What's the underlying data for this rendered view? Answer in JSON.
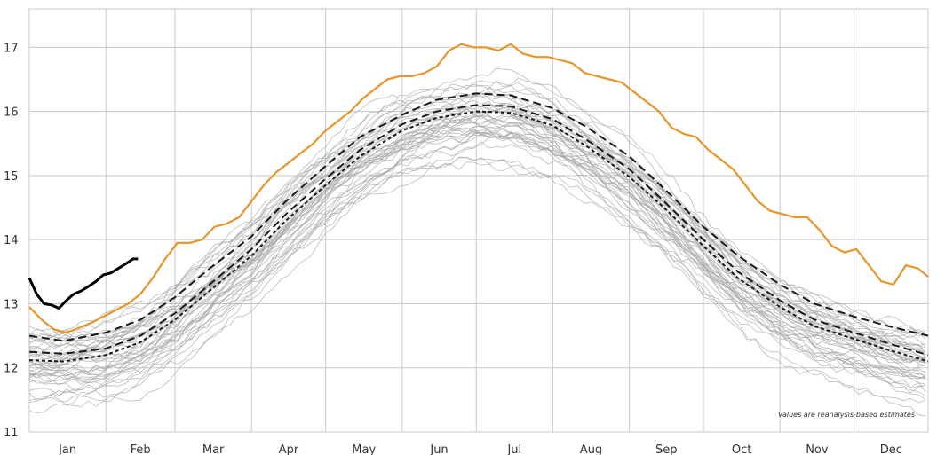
{
  "chart_data": {
    "type": "line",
    "title": "",
    "xlabel": "",
    "ylabel": "",
    "x_ticks": [
      "Jan",
      "Feb",
      "Mar",
      "Apr",
      "May",
      "Jun",
      "Jul",
      "Aug",
      "Sep",
      "Oct",
      "Nov",
      "Dec"
    ],
    "y_ticks": [
      11,
      12,
      13,
      14,
      15,
      16,
      17
    ],
    "ylim": [
      11,
      17.6
    ],
    "xlim_day_of_year": [
      1,
      365
    ],
    "grid": true,
    "legend": "none",
    "annotation": "Values are reanalysis-based estimates",
    "colors": {
      "ensemble": "#a6a6a6",
      "record": "#e8952b",
      "current": "#000000",
      "reference": "#1a1a1a",
      "grid": "#c8c8c8"
    },
    "ensemble_seed": 20240213,
    "ensemble_count": 44,
    "series": [
      {
        "role": "record",
        "style": "solid",
        "x": [
          1,
          6,
          11,
          16,
          21,
          26,
          31,
          36,
          41,
          46,
          51,
          56,
          61,
          66,
          71,
          76,
          81,
          86,
          91,
          96,
          101,
          106,
          111,
          116,
          121,
          126,
          131,
          136,
          141,
          146,
          151,
          156,
          161,
          166,
          171,
          176,
          181,
          186,
          191,
          196,
          201,
          206,
          211,
          216,
          221,
          226,
          231,
          236,
          241,
          246,
          251,
          256,
          261,
          266,
          271,
          276,
          281,
          286,
          291,
          296,
          301,
          306,
          311,
          316,
          321,
          326,
          331,
          336,
          341,
          346,
          351,
          356,
          361,
          365
        ],
        "y": [
          12.95,
          12.75,
          12.6,
          12.55,
          12.62,
          12.7,
          12.8,
          12.9,
          13.0,
          13.15,
          13.4,
          13.7,
          13.95,
          13.95,
          14.0,
          14.2,
          14.25,
          14.35,
          14.6,
          14.85,
          15.05,
          15.2,
          15.35,
          15.5,
          15.7,
          15.85,
          16.0,
          16.2,
          16.35,
          16.5,
          16.55,
          16.55,
          16.6,
          16.7,
          16.95,
          17.05,
          17.0,
          17.0,
          16.95,
          17.05,
          16.9,
          16.85,
          16.85,
          16.8,
          16.75,
          16.6,
          16.55,
          16.5,
          16.45,
          16.3,
          16.15,
          16.0,
          15.75,
          15.65,
          15.6,
          15.4,
          15.25,
          15.1,
          14.85,
          14.6,
          14.45,
          14.4,
          14.35,
          14.35,
          14.15,
          13.9,
          13.8,
          13.85,
          13.6,
          13.35,
          13.3,
          13.6,
          13.55,
          13.42
        ]
      },
      {
        "role": "current",
        "style": "solid",
        "x": [
          1,
          4,
          7,
          10,
          13,
          16,
          19,
          22,
          25,
          28,
          31,
          34,
          37,
          40,
          43,
          45
        ],
        "y": [
          13.4,
          13.15,
          13.0,
          12.98,
          12.93,
          13.05,
          13.15,
          13.2,
          13.27,
          13.35,
          13.45,
          13.48,
          13.55,
          13.62,
          13.7,
          13.7
        ]
      },
      {
        "role": "reference",
        "style": "dash",
        "x": [
          1,
          15,
          32,
          46,
          60,
          74,
          91,
          105,
          121,
          135,
          152,
          166,
          182,
          196,
          213,
          227,
          244,
          258,
          274,
          288,
          305,
          319,
          335,
          349,
          365
        ],
        "y": [
          12.5,
          12.42,
          12.55,
          12.75,
          13.1,
          13.55,
          14.05,
          14.6,
          15.15,
          15.6,
          15.95,
          16.18,
          16.28,
          16.25,
          16.05,
          15.75,
          15.3,
          14.8,
          14.2,
          13.75,
          13.3,
          13.0,
          12.8,
          12.65,
          12.5
        ]
      },
      {
        "role": "reference",
        "style": "dash",
        "x": [
          1,
          15,
          32,
          46,
          60,
          74,
          91,
          105,
          121,
          135,
          152,
          166,
          182,
          196,
          213,
          227,
          244,
          258,
          274,
          288,
          305,
          319,
          335,
          349,
          365
        ],
        "y": [
          12.25,
          12.22,
          12.3,
          12.5,
          12.85,
          13.3,
          13.85,
          14.4,
          14.95,
          15.4,
          15.8,
          16.0,
          16.1,
          16.08,
          15.88,
          15.55,
          15.1,
          14.6,
          14.0,
          13.5,
          13.05,
          12.75,
          12.55,
          12.38,
          12.2
        ]
      },
      {
        "role": "reference",
        "style": "dot",
        "x": [
          1,
          15,
          32,
          46,
          60,
          74,
          91,
          105,
          121,
          135,
          152,
          166,
          182,
          196,
          213,
          227,
          244,
          258,
          274,
          288,
          305,
          319,
          335,
          349,
          365
        ],
        "y": [
          12.12,
          12.1,
          12.2,
          12.4,
          12.75,
          13.2,
          13.75,
          14.3,
          14.85,
          15.3,
          15.7,
          15.9,
          16.0,
          15.98,
          15.78,
          15.45,
          14.98,
          14.5,
          13.9,
          13.4,
          12.95,
          12.65,
          12.45,
          12.28,
          12.1
        ]
      }
    ]
  }
}
